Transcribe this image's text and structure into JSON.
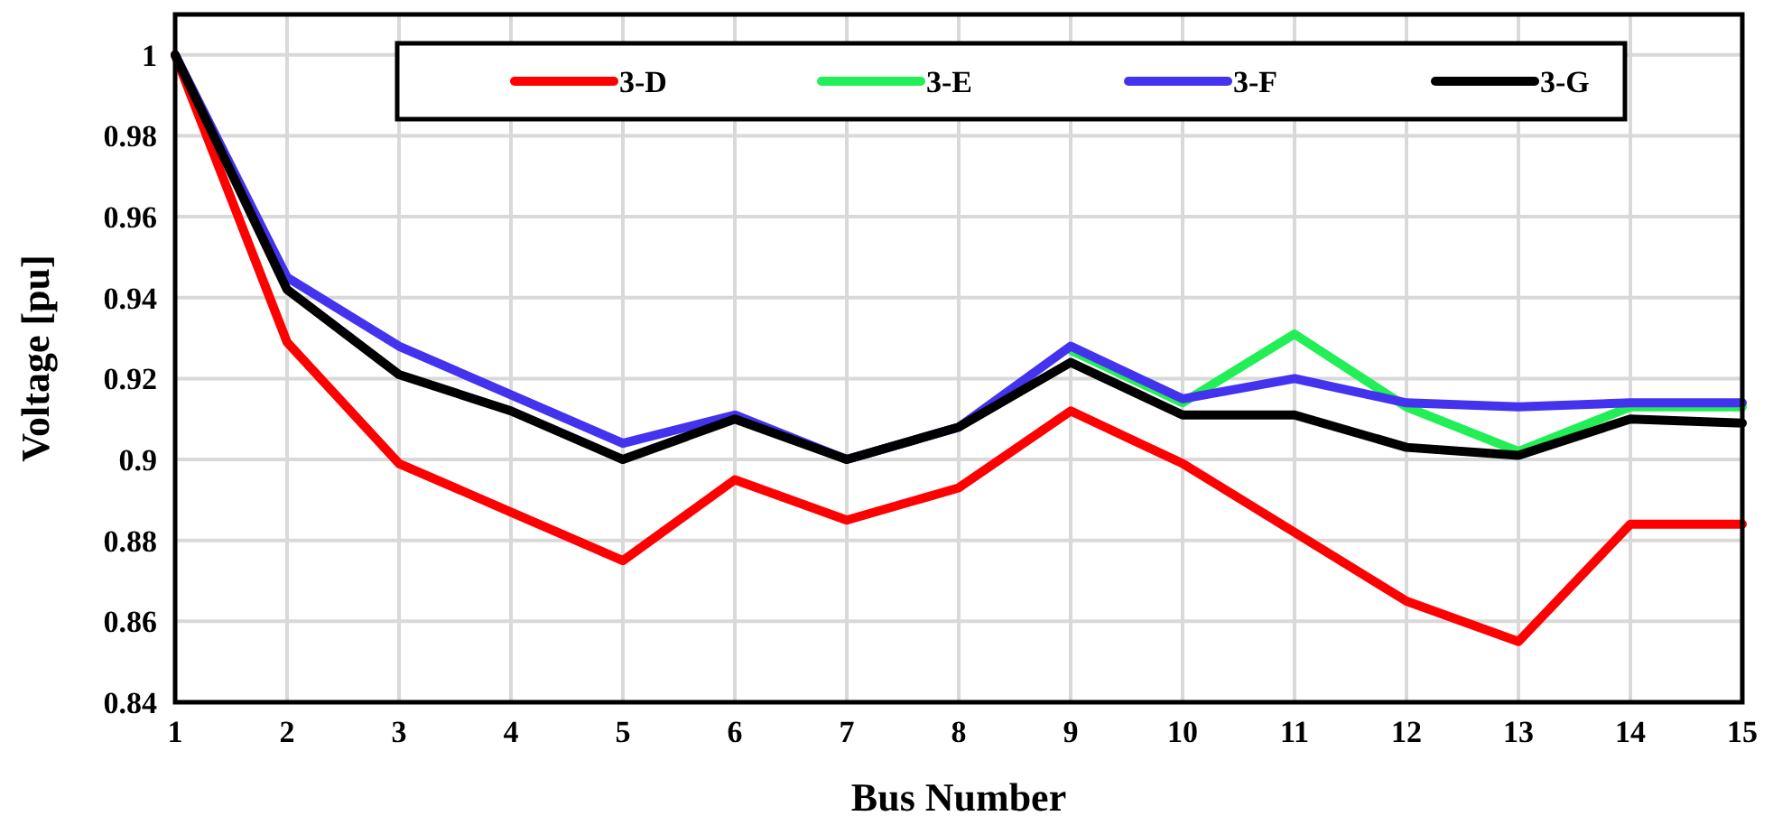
{
  "chart_data": {
    "type": "line",
    "xlabel": "Bus Number",
    "ylabel": "Voltage [pu]",
    "x": [
      1,
      2,
      3,
      4,
      5,
      6,
      7,
      8,
      9,
      10,
      11,
      12,
      13,
      14,
      15
    ],
    "xlim": [
      1,
      15
    ],
    "xticks": [
      1,
      2,
      3,
      4,
      5,
      6,
      7,
      8,
      9,
      10,
      11,
      12,
      13,
      14,
      15
    ],
    "ylim": [
      0.84,
      1.01
    ],
    "yticks": [
      0.84,
      0.86,
      0.88,
      0.9,
      0.92,
      0.94,
      0.96,
      0.98,
      1
    ],
    "grid": true,
    "legend": "top",
    "marker": "none",
    "line_style": "solid",
    "series": [
      {
        "name": "3-D",
        "color": "#ff0000",
        "values": [
          1,
          0.929,
          0.899,
          0.887,
          0.875,
          0.895,
          0.885,
          0.893,
          0.912,
          0.899,
          0.882,
          0.865,
          0.855,
          0.884,
          0.884
        ]
      },
      {
        "name": "3-E",
        "color": "#22ee55",
        "values": [
          null,
          null,
          null,
          null,
          null,
          null,
          null,
          null,
          0.927,
          0.914,
          0.931,
          0.913,
          0.902,
          0.913,
          0.913
        ]
      },
      {
        "name": "3-F",
        "color": "#4433ee",
        "values": [
          1,
          0.945,
          0.928,
          0.916,
          0.904,
          0.911,
          0.9,
          0.908,
          0.928,
          0.915,
          0.92,
          0.914,
          0.913,
          0.914,
          0.914
        ]
      },
      {
        "name": "3-G",
        "color": "#000000",
        "values": [
          1,
          0.942,
          0.921,
          0.912,
          0.9,
          0.91,
          0.9,
          0.908,
          0.924,
          0.911,
          0.911,
          0.903,
          0.901,
          0.91,
          0.909
        ]
      }
    ]
  }
}
